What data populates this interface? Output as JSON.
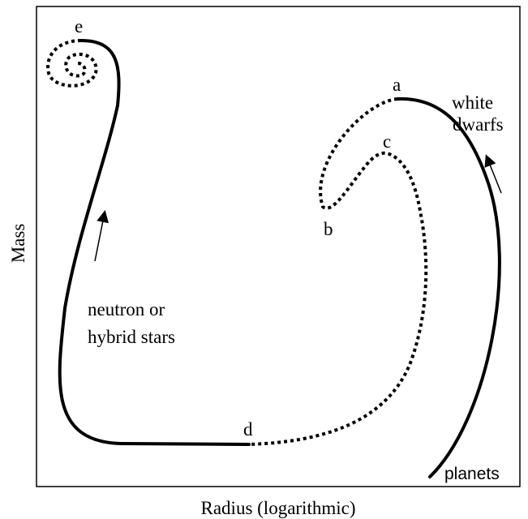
{
  "axes": {
    "x_label": "Radius (logarithmic)",
    "y_label": "Mass"
  },
  "points": {
    "a": "a",
    "b": "b",
    "c": "c",
    "d": "d",
    "e": "e"
  },
  "annotations": {
    "white_dwarfs": [
      "white",
      "dwarfs"
    ],
    "neutron_stars": [
      "neutron or",
      "hybrid stars"
    ],
    "planets": "planets"
  }
}
